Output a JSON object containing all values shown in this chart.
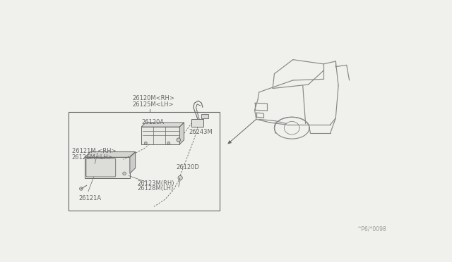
{
  "bg_color": "#f0f0ec",
  "line_color": "#666666",
  "text_color": "#666666",
  "watermark": "^P6/*0098",
  "labels": {
    "assembly_top1": "26120M<RH>",
    "assembly_top2": "26125M<LH>",
    "housing_a": "26120A",
    "lens_rh": "26121M <RH>",
    "lens_lh": "26126M<LH>",
    "harness": "26243M",
    "base": "26120D",
    "screw_rh": "26123M(RH)",
    "screw_lh": "26128M(LH)",
    "clip": "26121A"
  }
}
